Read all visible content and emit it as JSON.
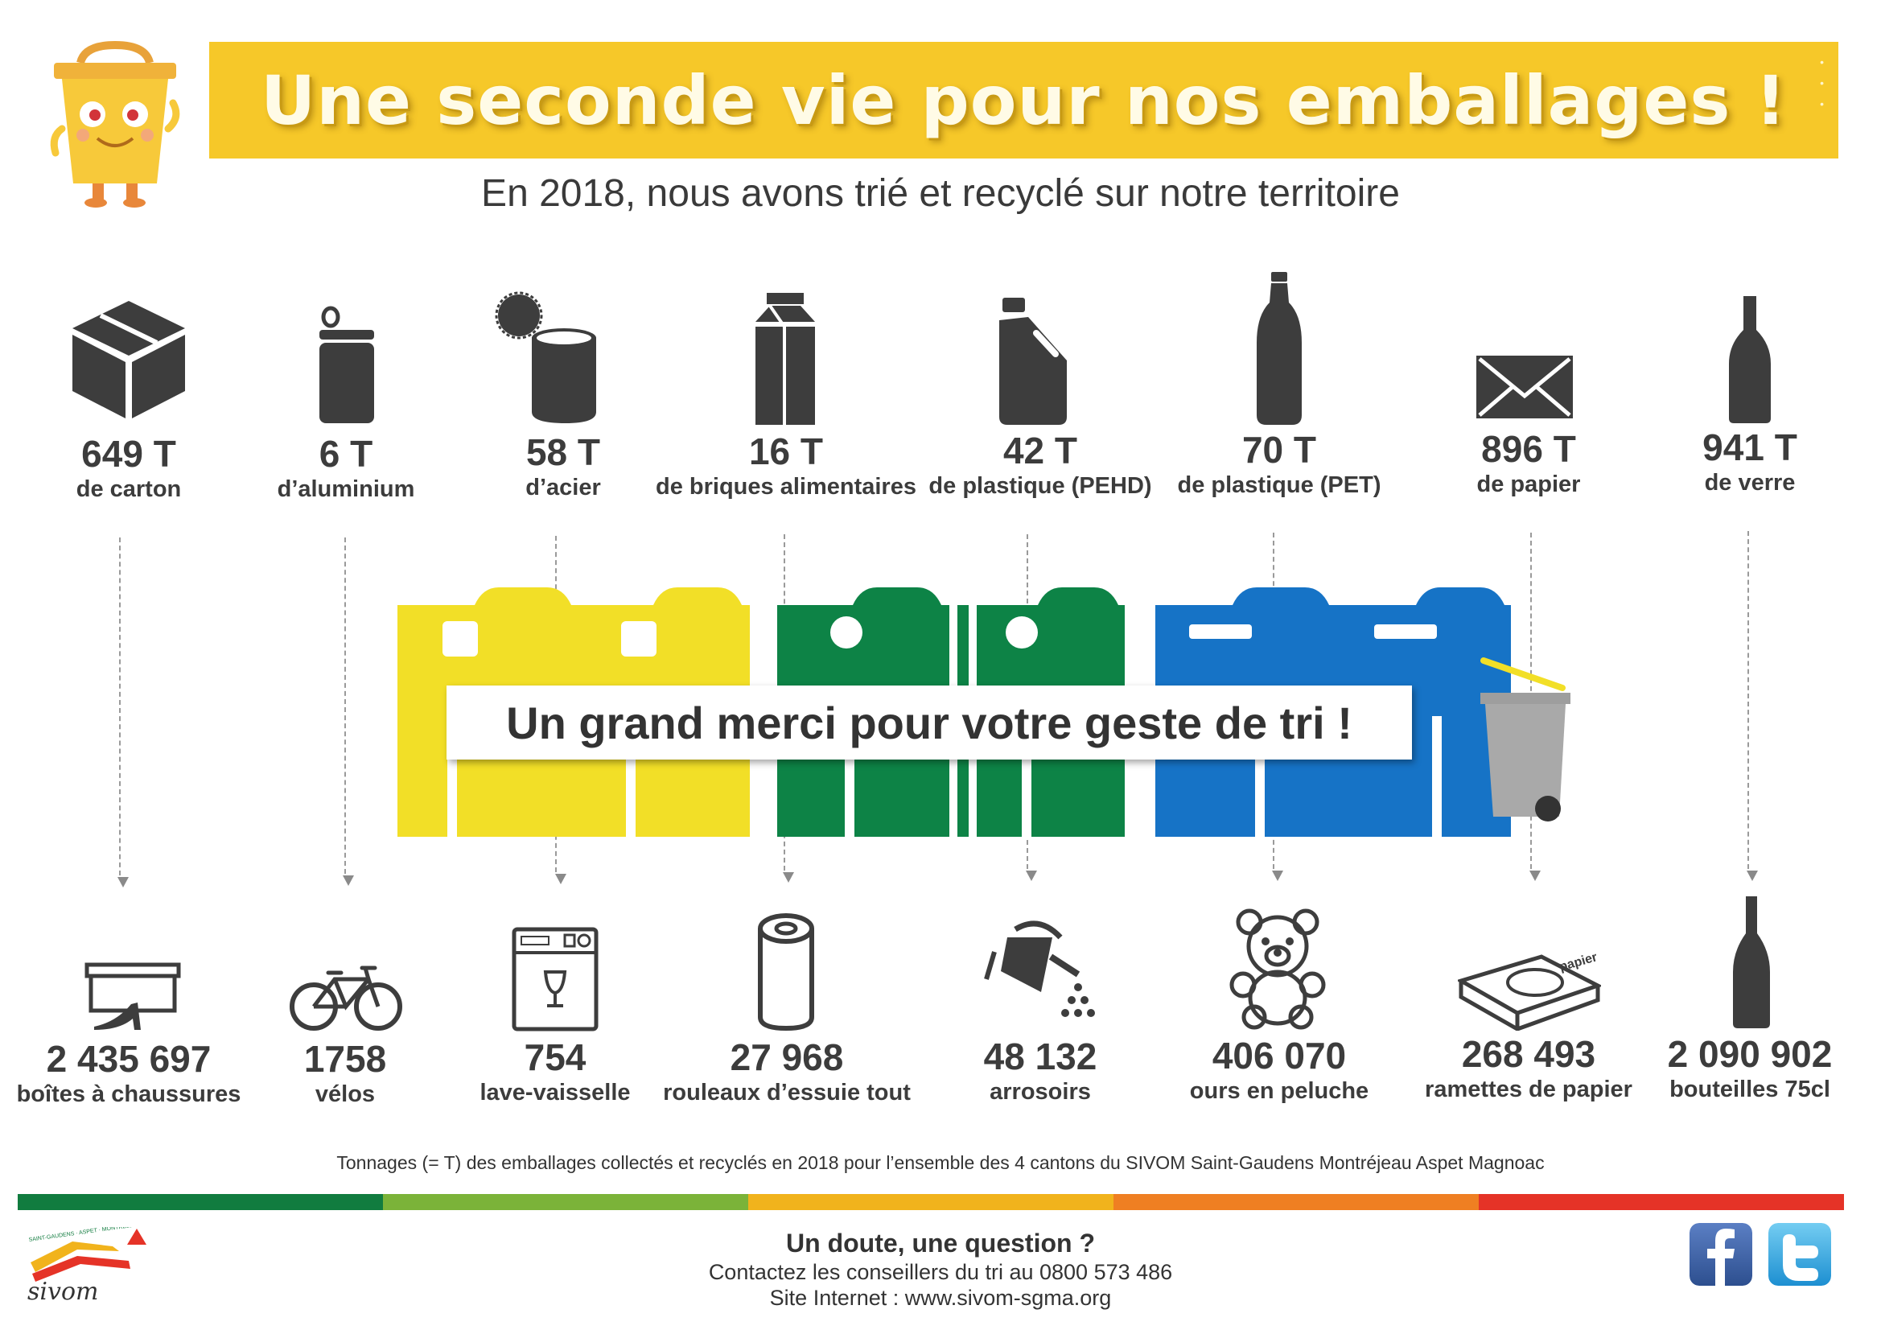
{
  "header": {
    "title": "Une seconde vie pour nos emballages !",
    "subtitle": "En 2018, nous avons trié et recyclé sur notre territoire"
  },
  "materials": [
    {
      "amount": "649 T",
      "label": "de carton",
      "icon": "cardboard-box-icon"
    },
    {
      "amount": "6 T",
      "label": "d’aluminium",
      "icon": "aluminium-can-icon"
    },
    {
      "amount": "58 T",
      "label": "d’acier",
      "icon": "steel-can-icon"
    },
    {
      "amount": "16 T",
      "label": "de briques alimentaires",
      "icon": "food-carton-icon"
    },
    {
      "amount": "42 T",
      "label": "de plastique (PEHD)",
      "icon": "plastic-jug-icon"
    },
    {
      "amount": "70 T",
      "label": "de plastique (PET)",
      "icon": "plastic-bottle-icon"
    },
    {
      "amount": "896 T",
      "label": "de papier",
      "icon": "envelope-icon"
    },
    {
      "amount": "941 T",
      "label": "de verre",
      "icon": "glass-bottle-icon"
    }
  ],
  "center_message": "Un grand merci pour votre geste de tri !",
  "equivalents": [
    {
      "count": "2 435 697",
      "label": "boîtes à chaussures",
      "icon": "shoebox-icon"
    },
    {
      "count": "1758",
      "label": "vélos",
      "icon": "bicycle-icon"
    },
    {
      "count": "754",
      "label": "lave-vaisselle",
      "icon": "dishwasher-icon"
    },
    {
      "count": "27 968",
      "label": "rouleaux d’essuie tout",
      "icon": "paper-towel-roll-icon"
    },
    {
      "count": "48 132",
      "label": "arrosoirs",
      "icon": "watering-can-icon"
    },
    {
      "count": "406 070",
      "label": "ours en peluche",
      "icon": "teddy-bear-icon"
    },
    {
      "count": "268 493",
      "label": "ramettes de papier",
      "icon": "paper-ream-icon"
    },
    {
      "count": "2 090 902",
      "label": "bouteilles 75cl",
      "icon": "wine-bottle-icon"
    }
  ],
  "footnote": "Tonnages (= T) des emballages collectés et recyclés en 2018 pour l’ensemble des 4 cantons du SIVOM Saint-Gaudens Montréjeau Aspet Magnoac",
  "contact": {
    "question": "Un doute, une question ?",
    "phone_line": "Contactez les conseillers du tri au 0800 573 486",
    "site_line": "Site Internet : www.sivom-sgma.org"
  },
  "logo": {
    "text": "sivom",
    "small_text": "SAINT-GAUDENS · ASPET · MONTRÉJEAU · MAGNOAC"
  },
  "paper_ream_label": "papier",
  "social": [
    "facebook-icon",
    "twitter-icon"
  ],
  "colors": {
    "banner": "#f6c829",
    "yellow_bin": "#f2df27",
    "green_bin": "#0d8346",
    "blue_bin": "#1673c6",
    "icon_dark": "#3d3d3d",
    "stripe": [
      "#117c3f",
      "#7bb339",
      "#f1b31c",
      "#ef7f22",
      "#e53327"
    ]
  }
}
